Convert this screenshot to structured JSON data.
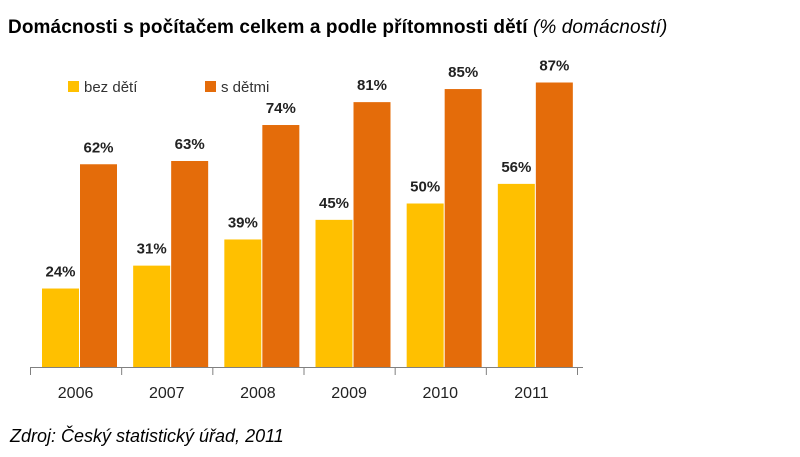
{
  "title": {
    "main": "Domácnosti s počítačem celkem a podle přítomnosti dětí",
    "sub": "(% domácností)"
  },
  "source": "Zdroj: Český statistický úřad, 2011",
  "colors": {
    "bez_deti": "#FFC000",
    "s_detmi": "#E46C0A",
    "axis": "#808080"
  },
  "chart_data": {
    "type": "bar",
    "categories": [
      "2006",
      "2007",
      "2008",
      "2009",
      "2010",
      "2011"
    ],
    "series": [
      {
        "name": "bez dětí",
        "values": [
          24,
          31,
          39,
          45,
          50,
          56
        ],
        "labels": [
          "24%",
          "31%",
          "39%",
          "45%",
          "50%",
          "56%"
        ]
      },
      {
        "name": "s dětmi",
        "values": [
          62,
          63,
          74,
          81,
          85,
          87
        ],
        "labels": [
          "62%",
          "63%",
          "74%",
          "81%",
          "85%",
          "87%"
        ]
      }
    ],
    "ylim": [
      0,
      100
    ],
    "legend": "top-left",
    "grid": false
  }
}
